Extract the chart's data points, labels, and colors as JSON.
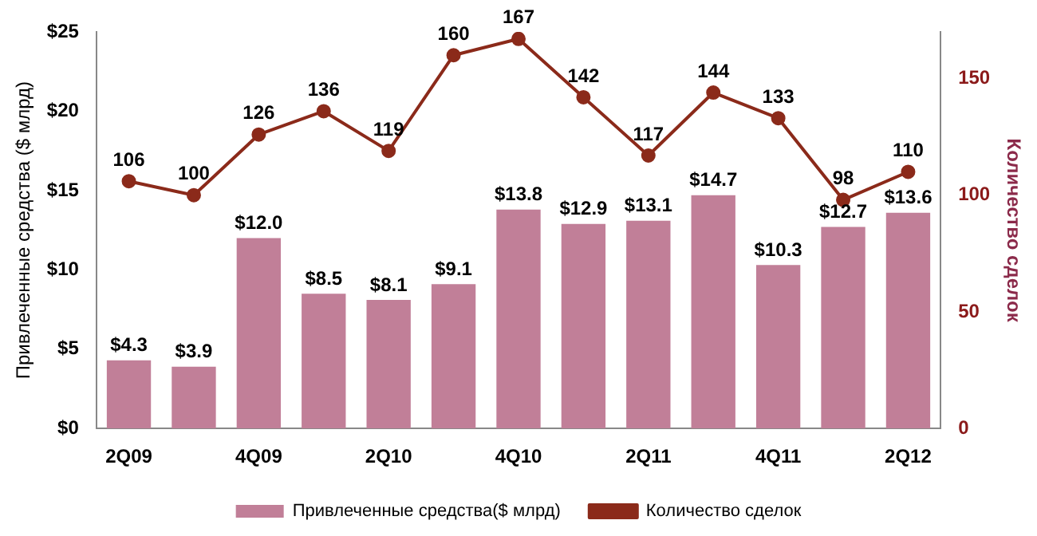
{
  "chart_data": {
    "type": "bar",
    "categories": [
      "2Q09",
      null,
      "4Q09",
      null,
      "2Q10",
      null,
      "4Q10",
      null,
      "2Q11",
      null,
      "4Q11",
      null,
      "2Q12"
    ],
    "ylabel": "Привлеченные средства ($ млрд)",
    "y2label": "Количество сделок",
    "ylim": [
      0,
      25
    ],
    "yticks": [
      {
        "value": 0,
        "label": "$0"
      },
      {
        "value": 5,
        "label": "$5"
      },
      {
        "value": 10,
        "label": "$10"
      },
      {
        "value": 15,
        "label": "$15"
      },
      {
        "value": 20,
        "label": "$20"
      },
      {
        "value": 25,
        "label": "$25"
      }
    ],
    "y2lim": [
      0,
      170
    ],
    "y2ticks": [
      0,
      50,
      100,
      150
    ],
    "series": [
      {
        "name": "Привлеченные средства($ млрд)",
        "color": "#c17f98",
        "values": [
          4.3,
          3.9,
          12.0,
          8.5,
          8.1,
          9.1,
          13.8,
          12.9,
          13.1,
          14.7,
          10.3,
          12.7,
          13.6
        ],
        "value_labels": [
          "$4.3",
          "$3.9",
          "$12.0",
          "$8.5",
          "$8.1",
          "$9.1",
          "$13.8",
          "$12.9",
          "$13.1",
          "$14.7",
          "$10.3",
          "$12.7",
          "$13.6"
        ]
      },
      {
        "name": "Количество сделок",
        "type": "line",
        "axis": "y2",
        "color": "#8b2a1a",
        "marker": "circle",
        "values": [
          106,
          100,
          126,
          136,
          119,
          160,
          167,
          142,
          117,
          144,
          133,
          98,
          110
        ],
        "value_labels": [
          "106",
          "100",
          "126",
          "136",
          "119",
          "160",
          "167",
          "142",
          "117",
          "144",
          "133",
          "98",
          "110"
        ]
      }
    ],
    "grid": false,
    "legend": "bottom"
  }
}
